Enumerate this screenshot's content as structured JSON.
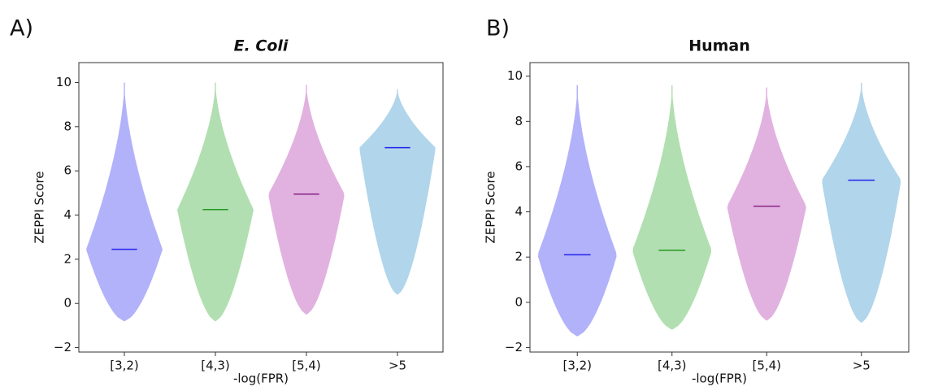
{
  "chart_data": [
    {
      "type": "violin",
      "panel_label": "A)",
      "title": "E. Coli",
      "title_style": "italic",
      "x_label": "-log(FPR)",
      "y_label": "ZEPPI Score",
      "categories": [
        "[3,2)",
        "[4,3)",
        "[5,4)",
        ">5"
      ],
      "values": [
        2.45,
        4.25,
        4.95,
        7.05
      ],
      "low": [
        -0.8,
        -0.8,
        -0.5,
        0.4
      ],
      "high": [
        10,
        10,
        9.9,
        9.7
      ],
      "colors": [
        "#aaaafa",
        "#a9dca9",
        "#deaadc",
        "#a9d0e8"
      ],
      "median_colors": [
        "#2222ee",
        "#229922",
        "#882288",
        "#2222ee"
      ],
      "ylim": [
        -2.2,
        10.9
      ],
      "yticks": [
        {
          "value": -2,
          "label": "−2"
        },
        0,
        2,
        4,
        6,
        8,
        10
      ]
    },
    {
      "type": "violin",
      "panel_label": "B)",
      "title": "Human",
      "title_style": "normal",
      "x_label": "-log(FPR)",
      "y_label": "ZEPPI Score",
      "categories": [
        "[3,2)",
        "[4,3)",
        "[5,4)",
        ">5"
      ],
      "values": [
        2.1,
        2.3,
        4.25,
        5.4
      ],
      "low": [
        -1.5,
        -1.2,
        -0.8,
        -0.9
      ],
      "high": [
        9.6,
        9.6,
        9.5,
        9.7
      ],
      "colors": [
        "#aaaafa",
        "#a9dca9",
        "#deaadc",
        "#a9d0e8"
      ],
      "median_colors": [
        "#2222ee",
        "#229922",
        "#882288",
        "#2222ee"
      ],
      "ylim": [
        -2.2,
        10.6
      ],
      "yticks": [
        {
          "value": -2,
          "label": "−2"
        },
        0,
        2,
        4,
        6,
        8,
        10
      ]
    }
  ]
}
